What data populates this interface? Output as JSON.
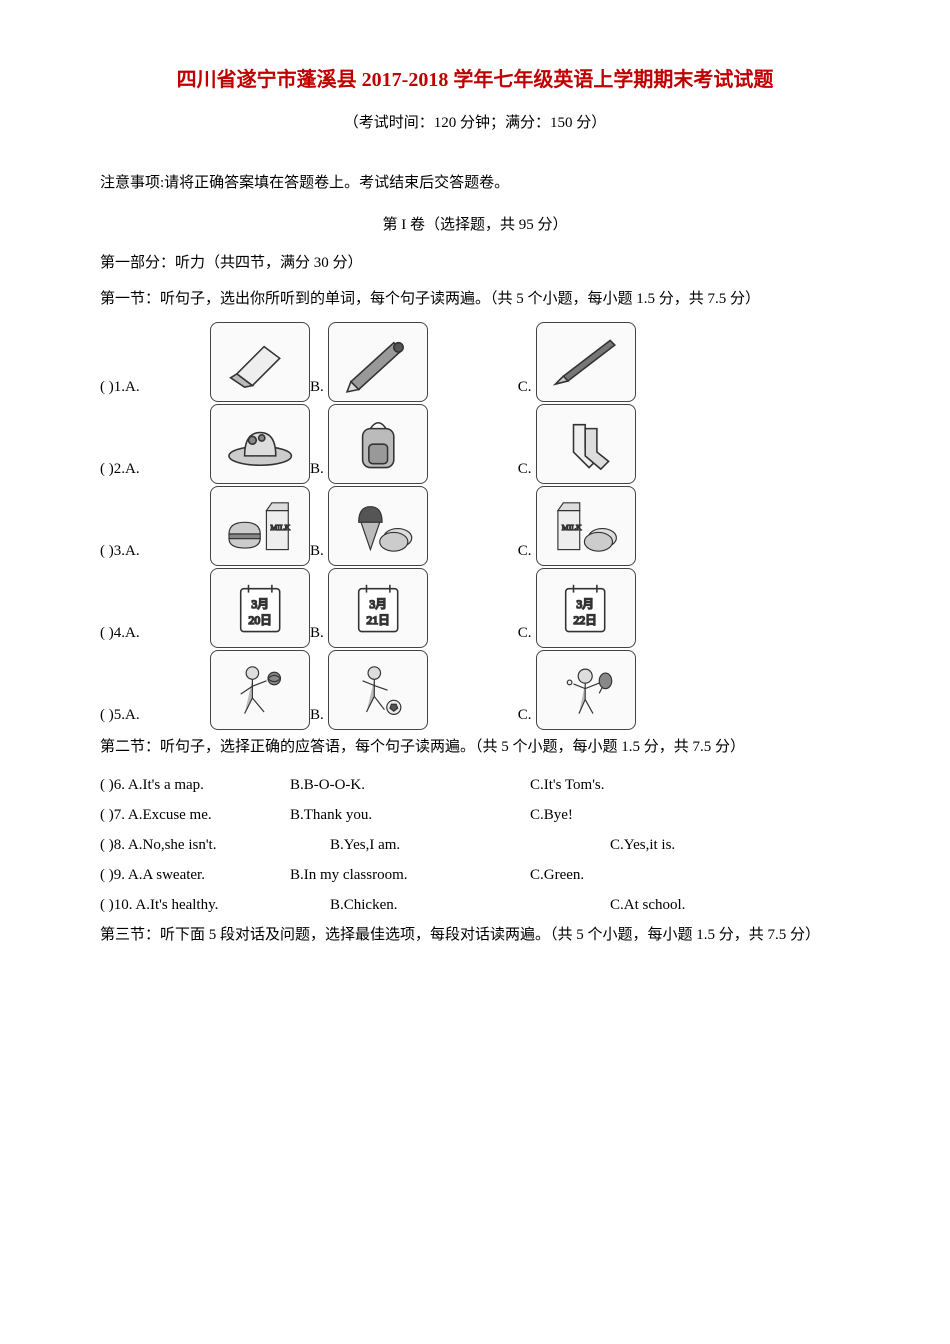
{
  "title": "四川省遂宁市蓬溪县 2017-2018 学年七年级英语上学期期末考试试题",
  "subtitle": "（考试时间：120 分钟；满分：150 分）",
  "notice": "注意事项:请将正确答案填在答题卷上。考试结束后交答题卷。",
  "vol_header": "第 I 卷（选择题，共 95 分）",
  "part1": "第一部分：听力（共四节，满分 30 分）",
  "sec1": "第一节：听句子，选出你所听到的单词，每个句子读两遍。（共 5 个小题，每小题 1.5 分，共 7.5 分）",
  "q_labels": {
    "pre": "(      )",
    "a": "A.",
    "b": "B.",
    "c": "C."
  },
  "img_q": [
    {
      "n": "1"
    },
    {
      "n": "2"
    },
    {
      "n": "3"
    },
    {
      "n": "4"
    },
    {
      "n": "5"
    }
  ],
  "dates": [
    "3月\n20日",
    "3月\n21日",
    "3月\n22日"
  ],
  "sec2": "第二节：听句子，选择正确的应答语，每个句子读两遍。（共 5 个小题，每小题 1.5 分，共 7.5 分）",
  "txt_q": [
    {
      "n": "6",
      "a": "A.It's a map.",
      "b": "B.B-O-O-K.",
      "c": "C.It's Tom's.",
      "alt": false
    },
    {
      "n": "7",
      "a": "A.Excuse me.",
      "b": "B.Thank you.",
      "c": "C.Bye!",
      "alt": false
    },
    {
      "n": "8",
      "a": "A.No,she isn't.",
      "b": "B.Yes,I am.",
      "c": "C.Yes,it is.",
      "alt": true
    },
    {
      "n": "9",
      "a": "A.A sweater.",
      "b": "B.In my classroom.",
      "c": "C.Green.",
      "alt": false
    },
    {
      "n": "10",
      "a": "A.It's healthy.",
      "b": "B.Chicken.",
      "c": "C.At school.",
      "alt": true
    }
  ],
  "sec3": "第三节：听下面 5 段对话及问题，选择最佳选项，每段对话读两遍。（共 5 个小题，每小题 1.5 分，共 7.5 分）",
  "colors": {
    "title_color": "#c00000",
    "text_color": "#000000",
    "img_border": "#444444",
    "img_bg": "#fafafa"
  },
  "fonts": {
    "body_pt": 11,
    "title_pt": 15
  }
}
